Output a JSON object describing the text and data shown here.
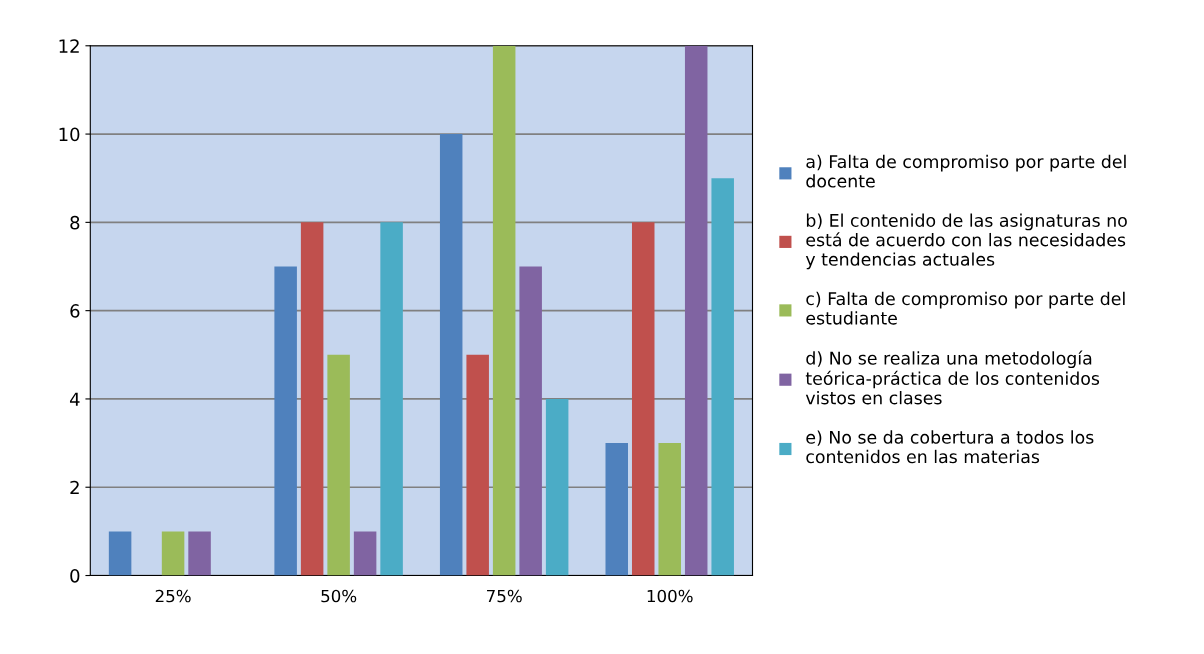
{
  "chart_data": {
    "type": "bar",
    "categories": [
      "25%",
      "50%",
      "75%",
      "100%"
    ],
    "series": [
      {
        "name": "a) Falta de compromiso por parte del\ndocente",
        "color": "#4f81bd",
        "values": [
          1,
          7,
          10,
          3
        ]
      },
      {
        "name": "b) El contenido de las asignaturas no\nestá de acuerdo con las necesidades\ny tendencias actuales",
        "color": "#c0504d",
        "values": [
          0,
          8,
          5,
          8
        ]
      },
      {
        "name": "c) Falta de compromiso por parte del\nestudiante",
        "color": "#9bbb59",
        "values": [
          1,
          5,
          12,
          3
        ]
      },
      {
        "name": "d) No se realiza una metodología\nteórica-práctica de los contenidos\nvistos en clases",
        "color": "#8064a2",
        "values": [
          1,
          1,
          7,
          12
        ]
      },
      {
        "name": "e) No se da cobertura a todos los\ncontenidos en las materias",
        "color": "#4bacc6",
        "values": [
          0,
          8,
          4,
          9
        ]
      }
    ],
    "ylim": [
      0,
      12
    ],
    "yticks": [
      0,
      2,
      4,
      6,
      8,
      10,
      12
    ],
    "grid": "y",
    "legend": "right"
  }
}
